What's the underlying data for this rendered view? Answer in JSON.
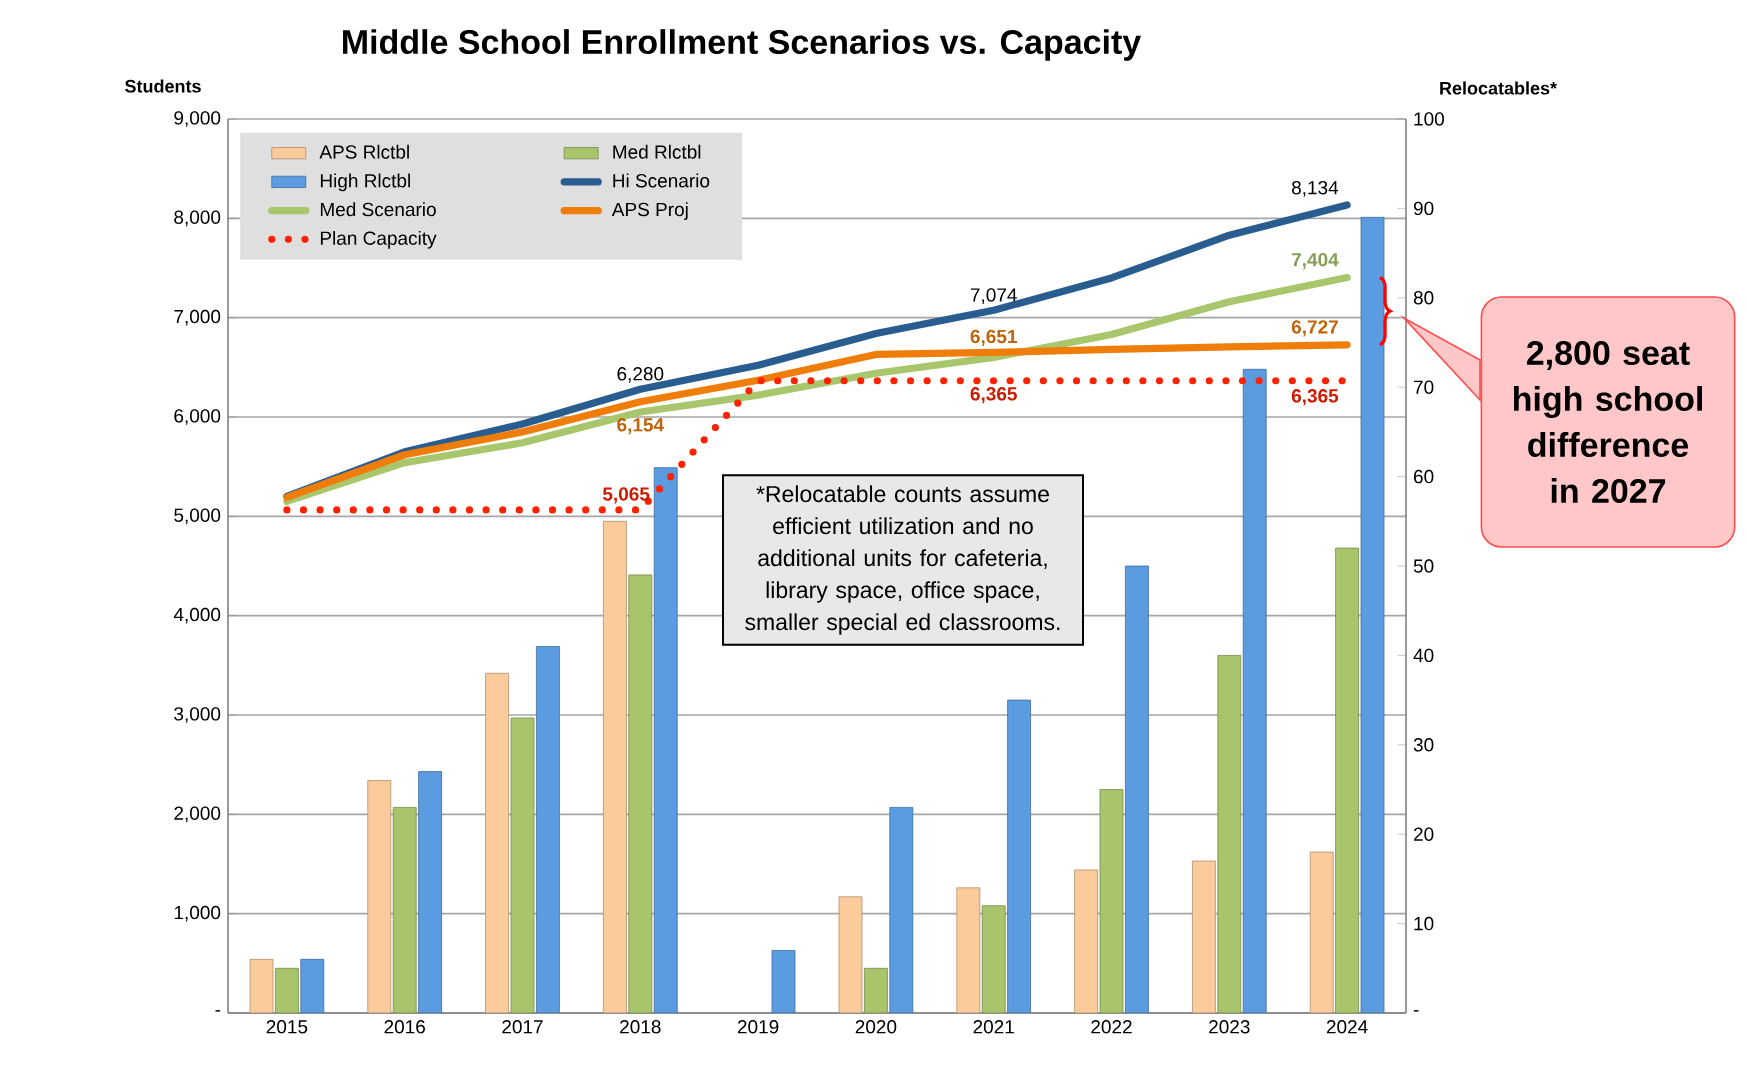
{
  "chart_data": {
    "type": "bar",
    "title": "Middle School Enrollment Scenarios vs. Capacity",
    "ylabel": "Students",
    "y2label": "Relocatables*",
    "categories": [
      "2015",
      "2016",
      "2017",
      "2018",
      "2019",
      "2020",
      "2021",
      "2022",
      "2023",
      "2024"
    ],
    "series": [
      {
        "name": "APS Rlctbl",
        "axis": "y2",
        "color": "#fbcb9c",
        "values": [
          6,
          26,
          38,
          55,
          null,
          13,
          14,
          16,
          17,
          18
        ]
      },
      {
        "name": "Med Rlctbl",
        "axis": "y2",
        "color": "#a8c56b",
        "values": [
          5,
          23,
          33,
          49,
          null,
          5,
          12,
          25,
          40,
          52
        ]
      },
      {
        "name": "High Rlctbl",
        "axis": "y2",
        "color": "#5b9be0",
        "values": [
          6,
          27,
          41,
          61,
          7,
          23,
          35,
          50,
          72,
          89
        ]
      },
      {
        "name": "Hi Scenario",
        "type": "line",
        "color": "#2a5d8f",
        "values": [
          5200,
          5650,
          5930,
          6280,
          6520,
          6840,
          7074,
          7400,
          7830,
          8134
        ],
        "value_labels": [
          null,
          null,
          null,
          "6,280",
          null,
          null,
          "7,074",
          null,
          null,
          "8,134"
        ]
      },
      {
        "name": "Med Scenario",
        "type": "line",
        "color": "#a8c66c",
        "values": [
          5150,
          5540,
          5740,
          6050,
          6220,
          6440,
          6600,
          6830,
          7160,
          7404
        ],
        "value_labels": [
          null,
          null,
          null,
          null,
          null,
          null,
          null,
          null,
          null,
          "7,404"
        ]
      },
      {
        "name": "APS Proj",
        "type": "line",
        "color": "#ef7d0a",
        "values": [
          5190,
          5620,
          5850,
          6154,
          6370,
          6630,
          6651,
          6680,
          6705,
          6727
        ],
        "value_labels": [
          null,
          null,
          null,
          "6,154",
          null,
          null,
          "6,651",
          null,
          null,
          "6,727"
        ]
      },
      {
        "name": "Plan Capacity",
        "type": "line",
        "line_style": "dotted",
        "color": "#ff2200",
        "values": [
          5065,
          5065,
          5065,
          5065,
          6365,
          6365,
          6365,
          6365,
          6365,
          6365
        ],
        "value_labels": [
          null,
          null,
          null,
          "5,065",
          null,
          null,
          "6,365",
          null,
          null,
          "6,365"
        ]
      }
    ],
    "ylim": [
      0,
      9000
    ],
    "yticks": [
      {
        "value": 0,
        "label": "-"
      },
      {
        "value": 1000,
        "label": "1,000"
      },
      {
        "value": 2000,
        "label": "2,000"
      },
      {
        "value": 3000,
        "label": "3,000"
      },
      {
        "value": 4000,
        "label": "4,000"
      },
      {
        "value": 5000,
        "label": "5,000"
      },
      {
        "value": 6000,
        "label": "6,000"
      },
      {
        "value": 7000,
        "label": "7,000"
      },
      {
        "value": 8000,
        "label": "8,000"
      },
      {
        "value": 9000,
        "label": "9,000"
      }
    ],
    "y2lim": [
      0,
      100
    ],
    "y2ticks": [
      {
        "value": 0,
        "label": "-"
      },
      10,
      20,
      30,
      40,
      50,
      60,
      70,
      80,
      90,
      100
    ],
    "grid": "y",
    "legend": "top left",
    "annotations": [
      "*Relocatable counts assume efficient utilization and no additional units for cafeteria, library space,  office space, smaller special ed classrooms.",
      "2,800 seat high school difference in 2027"
    ]
  }
}
